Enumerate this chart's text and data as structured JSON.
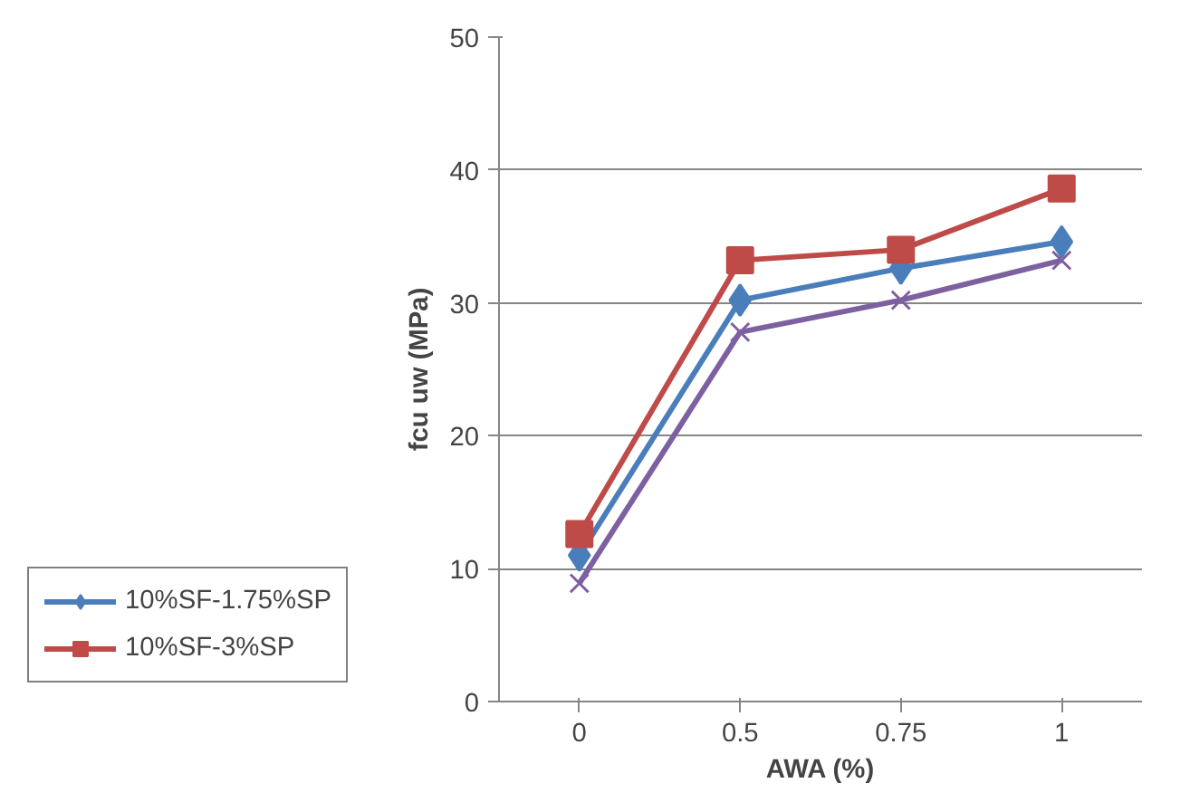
{
  "chart_data": {
    "type": "line",
    "xlabel": "AWA (%)",
    "ylabel": "fcu uw (MPa)",
    "categories": [
      "0",
      "0.5",
      "0.75",
      "1"
    ],
    "ylim": [
      0,
      50
    ],
    "yticks": [
      0,
      10,
      20,
      30,
      40,
      50
    ],
    "grid": "y",
    "legend": "bottom left",
    "line_style": "solid",
    "series": [
      {
        "name": "10%SF-1.75%SP",
        "color": "#4a7ebb",
        "marker": "diamond",
        "values": [
          11.0,
          30.2,
          32.6,
          34.6
        ]
      },
      {
        "name": "10%SF-3%SP",
        "color": "#be4b48",
        "marker": "square",
        "values": [
          12.6,
          33.2,
          34.0,
          38.6
        ]
      },
      {
        "color": "#7d60a0",
        "marker": "cross",
        "values": [
          8.9,
          27.8,
          30.2,
          33.2
        ]
      }
    ]
  }
}
